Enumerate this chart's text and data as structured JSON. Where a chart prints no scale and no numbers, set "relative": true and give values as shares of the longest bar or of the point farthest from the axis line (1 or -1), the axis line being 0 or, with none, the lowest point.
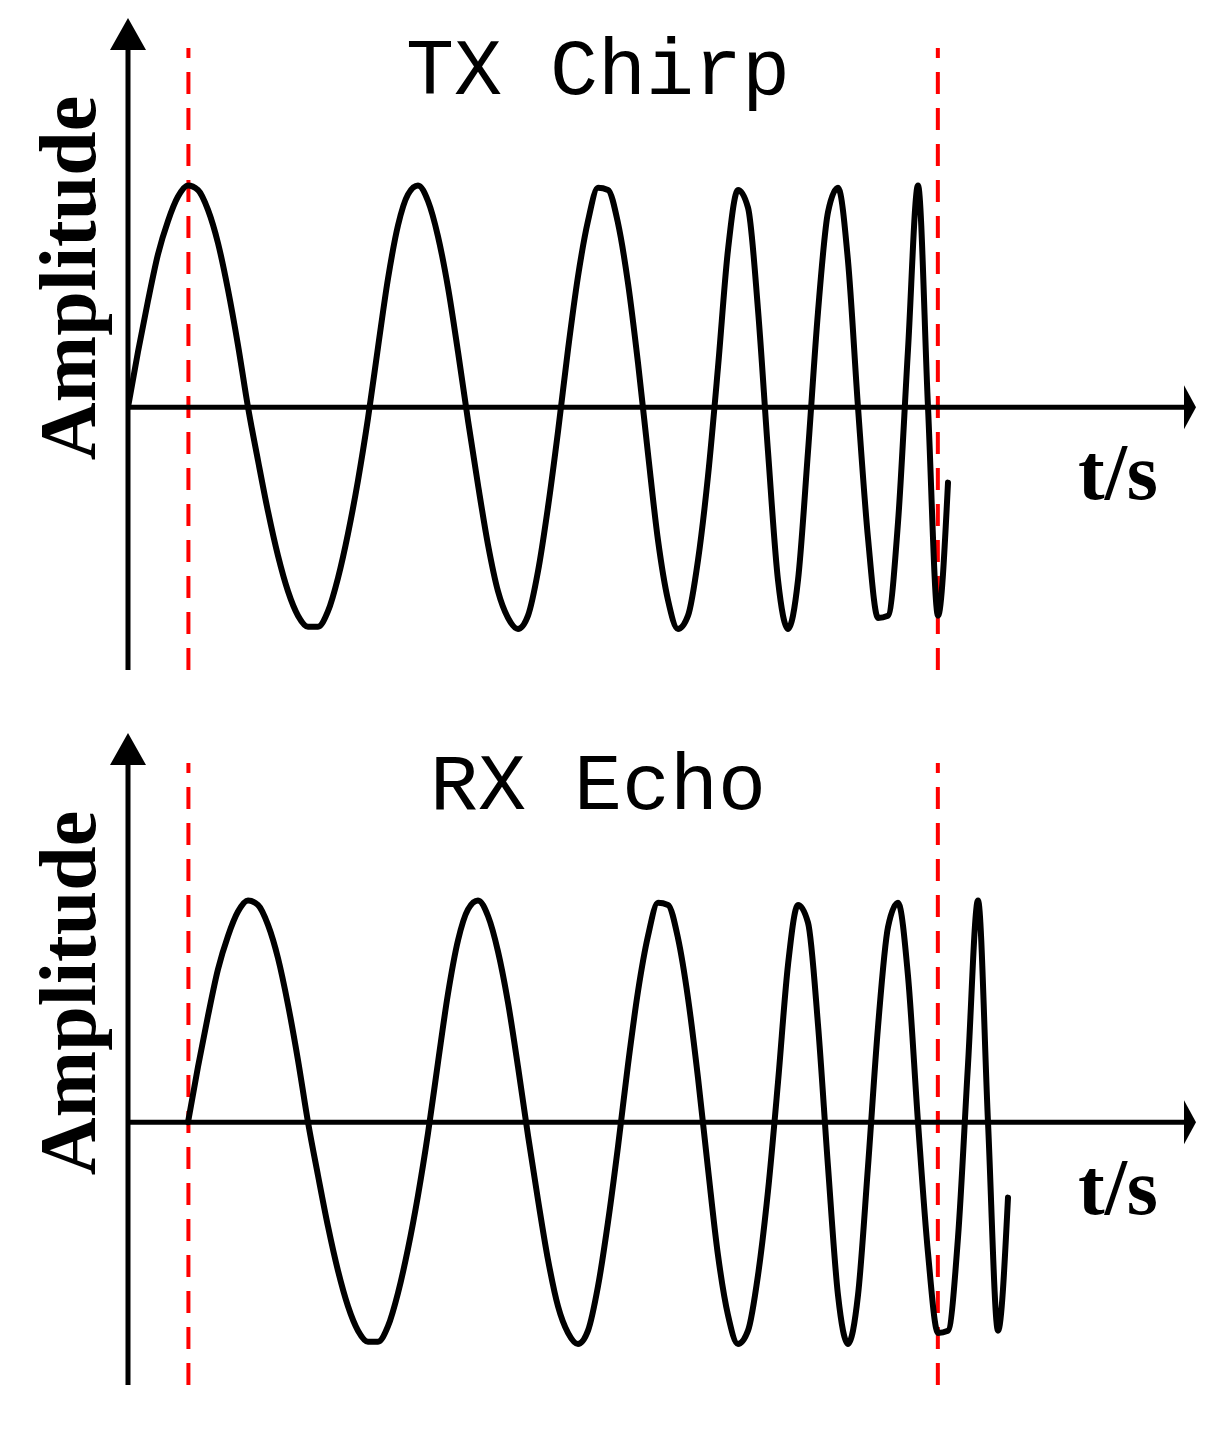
{
  "chart_data": [
    {
      "type": "line",
      "title": "TX Chirp",
      "xlabel": "t/s",
      "ylabel": "Amplitude",
      "relative": true,
      "tick_labels": false,
      "marker": "none",
      "line_style": "solid",
      "categories": [
        null,
        null,
        null,
        null,
        null,
        null,
        null,
        null,
        null,
        null,
        null,
        null,
        null,
        null,
        null,
        null,
        null,
        null,
        null,
        null,
        null,
        null,
        null,
        null,
        null,
        null,
        null,
        null,
        null,
        null,
        null,
        null,
        null,
        null,
        null,
        null,
        null,
        null,
        null,
        null,
        null,
        null,
        null,
        null,
        null,
        null,
        null,
        null,
        null,
        null,
        null,
        null,
        null,
        null,
        null,
        null,
        null,
        null,
        null,
        null,
        null,
        null,
        null,
        null,
        null,
        null,
        null,
        null,
        null,
        null,
        null,
        null,
        null,
        null,
        null,
        null,
        null,
        null,
        null,
        null,
        null,
        null,
        null,
        null,
        null,
        null,
        null,
        null,
        null,
        null,
        null,
        null,
        null,
        null,
        null,
        null,
        null,
        null,
        null,
        null,
        null,
        null,
        null,
        null,
        null,
        null,
        null
      ],
      "series": [
        {
          "color": "#000000",
          "values": [
            0,
            0.25,
            0.48,
            0.69,
            0.84,
            0.95,
            1,
            0.98,
            0.89,
            0.74,
            0.53,
            0.28,
            0,
            -0.24,
            -0.47,
            -0.67,
            -0.83,
            -0.94,
            -0.99,
            -0.99,
            -0.92,
            -0.77,
            -0.57,
            -0.33,
            -0.05,
            0.27,
            0.58,
            0.82,
            0.96,
            1,
            0.93,
            0.77,
            0.54,
            0.25,
            -0.06,
            -0.35,
            -0.62,
            -0.83,
            -0.95,
            -1,
            -0.94,
            -0.74,
            -0.45,
            -0.11,
            0.26,
            0.59,
            0.84,
            0.99,
            0.98,
            0.83,
            0.56,
            0.2,
            -0.21,
            -0.6,
            -0.87,
            -1,
            -0.94,
            -0.69,
            -0.31,
            0.18,
            0.71,
            0.98,
            0.9,
            0.44,
            -0.2,
            -0.78,
            -1,
            -0.78,
            -0.2,
            0.43,
            0.88,
            0.99,
            0.66,
            0,
            -0.59,
            -0.95,
            -0.94,
            -0.52,
            0.26,
            1,
            0,
            -0.94,
            -0.34,
            null,
            null,
            null,
            null,
            null,
            null,
            null,
            null,
            null,
            null,
            null,
            null,
            null,
            null,
            null,
            null,
            null,
            null,
            null,
            null,
            null,
            null,
            null,
            null
          ]
        }
      ]
    },
    {
      "type": "line",
      "title": "RX Echo",
      "xlabel": "t/s",
      "ylabel": "Amplitude",
      "relative": true,
      "tick_labels": false,
      "marker": "none",
      "line_style": "solid",
      "categories": [
        null,
        null,
        null,
        null,
        null,
        null,
        null,
        null,
        null,
        null,
        null,
        null,
        null,
        null,
        null,
        null,
        null,
        null,
        null,
        null,
        null,
        null,
        null,
        null,
        null,
        null,
        null,
        null,
        null,
        null,
        null,
        null,
        null,
        null,
        null,
        null,
        null,
        null,
        null,
        null,
        null,
        null,
        null,
        null,
        null,
        null,
        null,
        null,
        null,
        null,
        null,
        null,
        null,
        null,
        null,
        null,
        null,
        null,
        null,
        null,
        null,
        null,
        null,
        null,
        null,
        null,
        null,
        null,
        null,
        null,
        null,
        null,
        null,
        null,
        null,
        null,
        null,
        null,
        null,
        null,
        null,
        null,
        null,
        null,
        null,
        null,
        null,
        null,
        null,
        null,
        null,
        null,
        null,
        null,
        null,
        null,
        null,
        null,
        null,
        null,
        null,
        null,
        null,
        null,
        null,
        null,
        null
      ],
      "series": [
        {
          "color": "#000000",
          "values": [
            null,
            null,
            null,
            null,
            null,
            null,
            0,
            0.25,
            0.48,
            0.69,
            0.84,
            0.95,
            1,
            0.98,
            0.89,
            0.74,
            0.53,
            0.28,
            0,
            -0.24,
            -0.47,
            -0.67,
            -0.83,
            -0.94,
            -0.99,
            -0.99,
            -0.92,
            -0.77,
            -0.57,
            -0.33,
            -0.05,
            0.27,
            0.58,
            0.82,
            0.96,
            1,
            0.93,
            0.77,
            0.54,
            0.25,
            -0.06,
            -0.35,
            -0.62,
            -0.83,
            -0.95,
            -1,
            -0.94,
            -0.74,
            -0.45,
            -0.11,
            0.26,
            0.59,
            0.84,
            0.99,
            0.98,
            0.83,
            0.56,
            0.2,
            -0.21,
            -0.6,
            -0.87,
            -1,
            -0.94,
            -0.69,
            -0.31,
            0.18,
            0.71,
            0.98,
            0.9,
            0.44,
            -0.2,
            -0.78,
            -1,
            -0.78,
            -0.2,
            0.43,
            0.88,
            0.99,
            0.66,
            0,
            -0.59,
            -0.95,
            -0.94,
            -0.52,
            0.26,
            1,
            0,
            -0.94,
            -0.34,
            null,
            null,
            null,
            null,
            null,
            null,
            null,
            null,
            null,
            null,
            null,
            null,
            null,
            null,
            null,
            null,
            null,
            null
          ]
        }
      ]
    }
  ]
}
